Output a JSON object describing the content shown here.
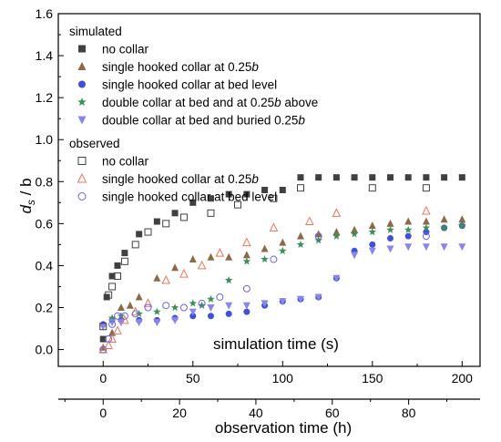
{
  "chart_data": {
    "type": "scatter",
    "xlabel": "simulation time (s)",
    "x2label": "observation time (h)",
    "ylabel_main": "d",
    "ylabel_sub": "s",
    "ylabel_tail": " / b",
    "xlim": [
      -25,
      210
    ],
    "x2lim": [
      -11.75,
      98.7
    ],
    "ylim": [
      -0.08,
      1.6
    ],
    "xticks": [
      0,
      50,
      100,
      150,
      200
    ],
    "x2ticks": [
      0,
      20,
      40,
      60,
      80
    ],
    "yticks": [
      0.0,
      0.2,
      0.4,
      0.6,
      0.8,
      1.0,
      1.2,
      1.4,
      1.6
    ],
    "legend": {
      "position": "top-left",
      "simulated_header": "simulated",
      "observed_header": "observed"
    },
    "series": [
      {
        "group": "simulated",
        "name": "no collar",
        "marker": "square-filled",
        "color": "#404040",
        "x": [
          0,
          2,
          5,
          8,
          12,
          20,
          30,
          40,
          50,
          60,
          70,
          80,
          90,
          100,
          110,
          120,
          130,
          140,
          150,
          160,
          170,
          180,
          190,
          200
        ],
        "y": [
          0.05,
          0.25,
          0.35,
          0.4,
          0.46,
          0.55,
          0.61,
          0.65,
          0.7,
          0.72,
          0.74,
          0.74,
          0.76,
          0.76,
          0.82,
          0.82,
          0.82,
          0.82,
          0.82,
          0.82,
          0.82,
          0.82,
          0.82,
          0.82
        ]
      },
      {
        "group": "simulated",
        "name": "single hooked collar at 0.25b",
        "marker": "triangle-up-filled",
        "color": "#8B6A4A",
        "x": [
          0,
          5,
          10,
          15,
          20,
          30,
          40,
          50,
          60,
          70,
          80,
          90,
          100,
          110,
          120,
          130,
          140,
          150,
          160,
          170,
          180,
          190,
          200
        ],
        "y": [
          0.01,
          0.08,
          0.2,
          0.21,
          0.25,
          0.34,
          0.39,
          0.43,
          0.44,
          0.44,
          0.45,
          0.48,
          0.51,
          0.54,
          0.55,
          0.56,
          0.57,
          0.59,
          0.6,
          0.61,
          0.61,
          0.62,
          0.62
        ]
      },
      {
        "group": "simulated",
        "name": "single hooked collar at bed level",
        "marker": "circle-filled",
        "color": "#3F52D6",
        "x": [
          0,
          5,
          10,
          20,
          30,
          40,
          50,
          60,
          70,
          80,
          90,
          100,
          110,
          120,
          130,
          140,
          150,
          160,
          170,
          180,
          190,
          200
        ],
        "y": [
          0.12,
          0.14,
          0.14,
          0.14,
          0.14,
          0.15,
          0.16,
          0.16,
          0.17,
          0.18,
          0.21,
          0.23,
          0.24,
          0.25,
          0.34,
          0.47,
          0.5,
          0.53,
          0.54,
          0.56,
          0.58,
          0.59
        ]
      },
      {
        "group": "simulated",
        "name": "double collar at bed and at 0.25b above",
        "marker": "star",
        "color": "#3E8E5A",
        "x": [
          5,
          10,
          20,
          30,
          40,
          50,
          55,
          60,
          70,
          80,
          90,
          100,
          110,
          120,
          130,
          140,
          150,
          160,
          170,
          180,
          190,
          200
        ],
        "y": [
          0.15,
          0.16,
          0.17,
          0.18,
          0.2,
          0.22,
          0.21,
          0.24,
          0.33,
          0.42,
          0.43,
          0.47,
          0.5,
          0.52,
          0.54,
          0.55,
          0.56,
          0.57,
          0.57,
          0.58,
          0.58,
          0.59
        ]
      },
      {
        "group": "simulated",
        "name": "double collar at bed and buried 0.25b",
        "marker": "triangle-down-filled",
        "color": "#8A86E8",
        "x": [
          0,
          5,
          10,
          20,
          30,
          40,
          50,
          60,
          70,
          80,
          90,
          100,
          110,
          120,
          130,
          140,
          150,
          160,
          170,
          180,
          190,
          200
        ],
        "y": [
          0.11,
          0.13,
          0.13,
          0.13,
          0.13,
          0.14,
          0.18,
          0.2,
          0.21,
          0.21,
          0.22,
          0.23,
          0.24,
          0.25,
          0.34,
          0.45,
          0.47,
          0.48,
          0.49,
          0.49,
          0.49,
          0.49
        ]
      },
      {
        "group": "observed",
        "name": "no collar",
        "marker": "square-open",
        "color": "#404040",
        "x": [
          0,
          3,
          5,
          8,
          12,
          18,
          25,
          35,
          45,
          60,
          75,
          95,
          110,
          150,
          180
        ],
        "y": [
          0.11,
          0.26,
          0.3,
          0.35,
          0.42,
          0.5,
          0.56,
          0.6,
          0.63,
          0.65,
          0.69,
          0.72,
          0.77,
          0.77,
          0.77
        ]
      },
      {
        "group": "observed",
        "name": "single hooked collar at 0.25b",
        "marker": "triangle-up-open",
        "color": "#E87960",
        "x": [
          0,
          3,
          5,
          8,
          12,
          18,
          25,
          35,
          45,
          55,
          65,
          80,
          95,
          115,
          130,
          180
        ],
        "y": [
          0.0,
          0.02,
          0.05,
          0.09,
          0.14,
          0.18,
          0.22,
          0.33,
          0.36,
          0.4,
          0.46,
          0.51,
          0.58,
          0.61,
          0.65,
          0.66
        ]
      },
      {
        "group": "observed",
        "name": "single hooked collar at bed level",
        "marker": "circle-open",
        "color": "#6A66E0",
        "x": [
          0,
          3,
          5,
          8,
          12,
          18,
          25,
          35,
          45,
          55,
          65,
          80,
          95,
          120,
          180
        ],
        "y": [
          0.0,
          0.05,
          0.12,
          0.16,
          0.16,
          0.17,
          0.2,
          0.21,
          0.2,
          0.22,
          0.25,
          0.29,
          0.43,
          0.54,
          0.54
        ]
      }
    ]
  }
}
